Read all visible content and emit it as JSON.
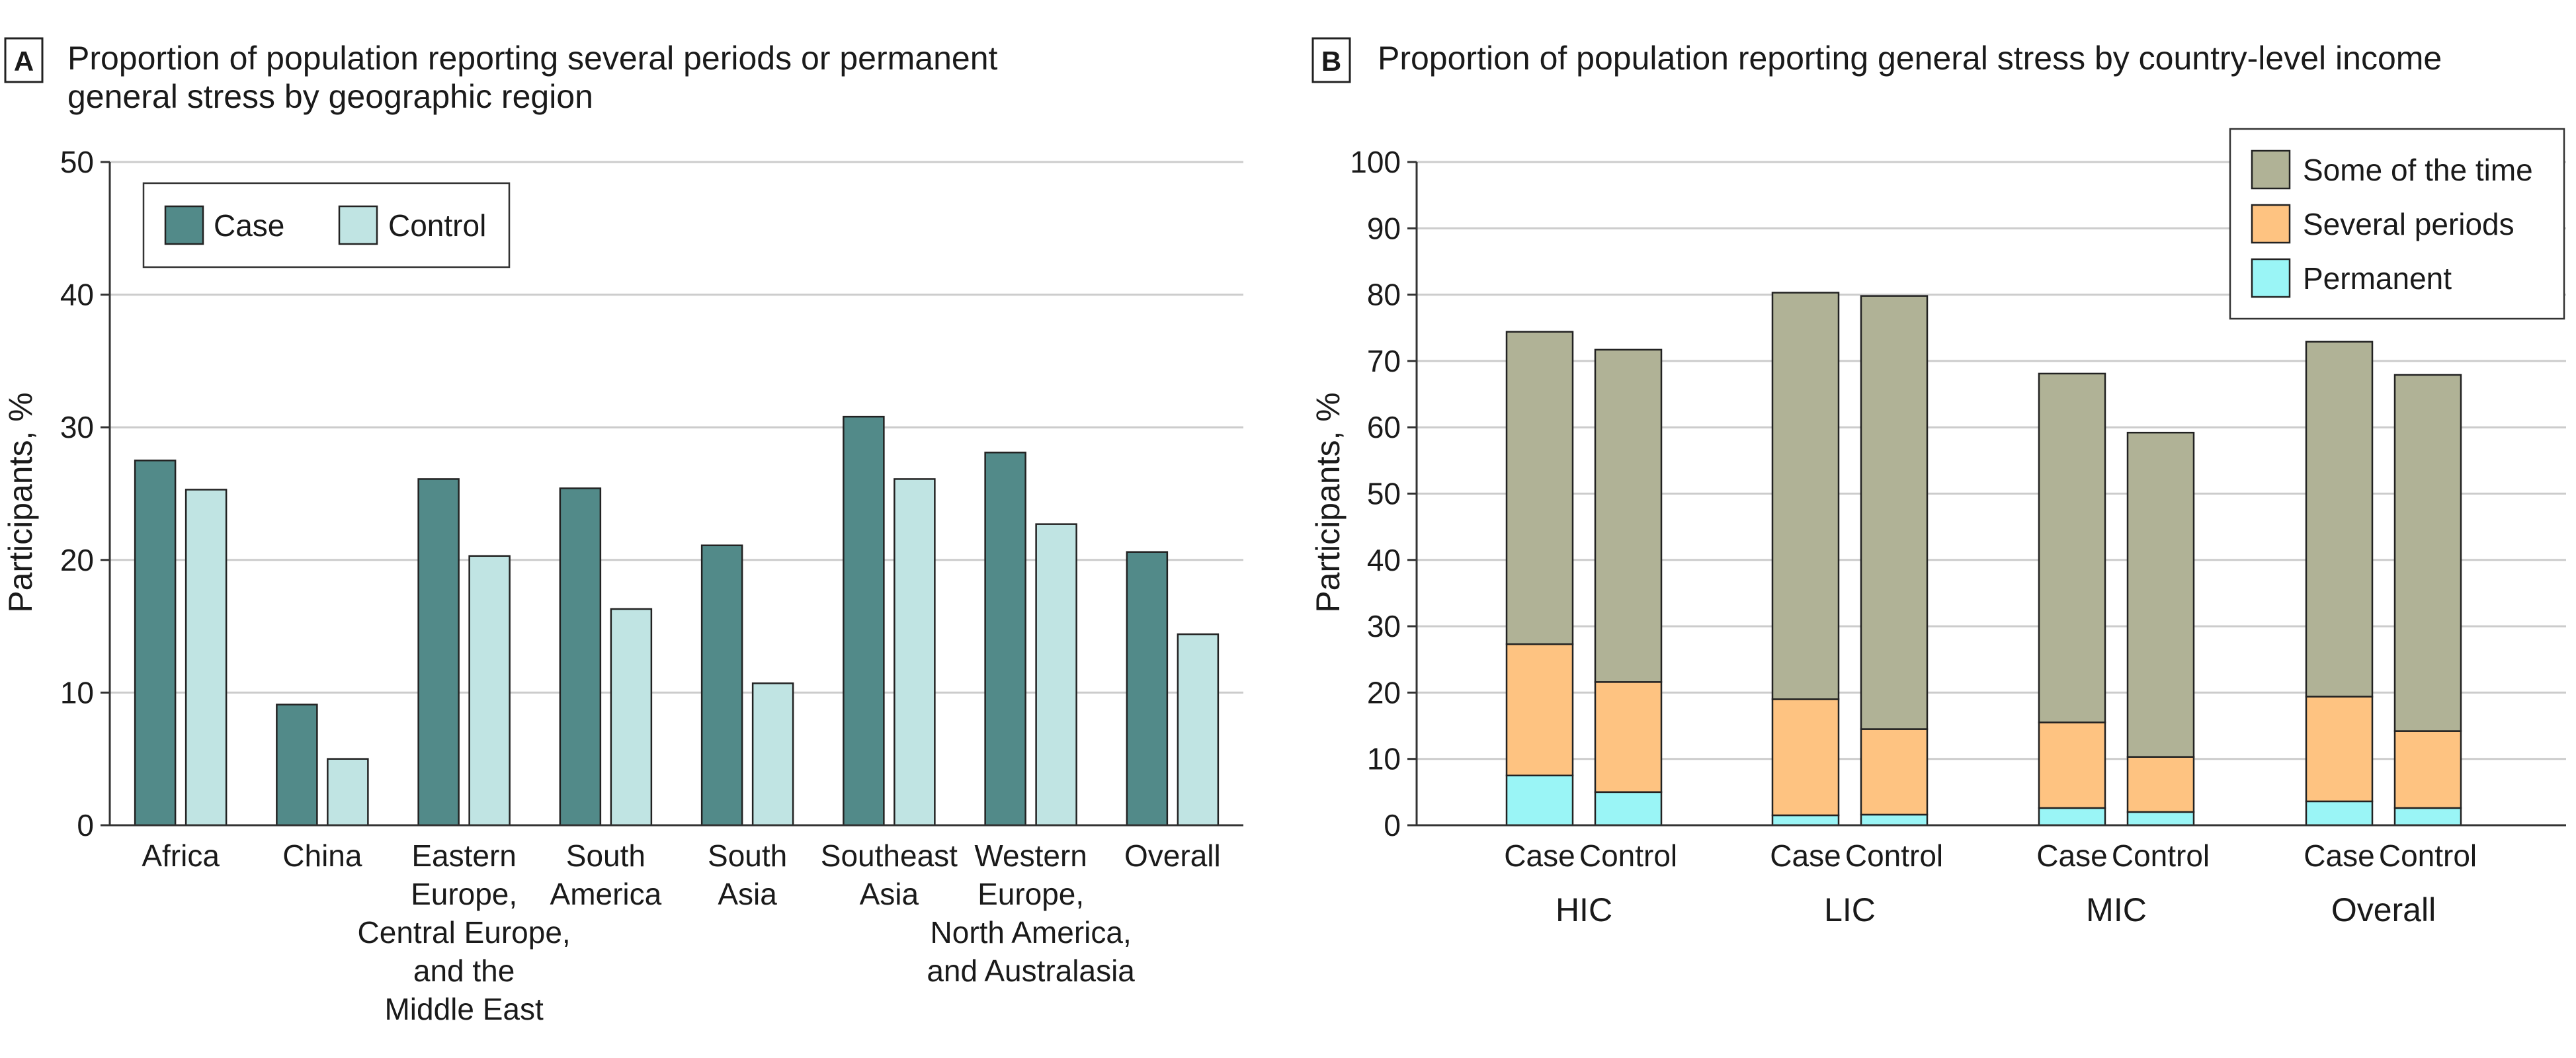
{
  "chart_data": [
    {
      "panel": "A",
      "type": "bar",
      "title_lines": [
        "Proportion of population reporting several periods or permanent",
        "general stress by geographic region"
      ],
      "ylabel": "Participants, %",
      "ylim": [
        0,
        50
      ],
      "yticks": [
        0,
        10,
        20,
        30,
        40,
        50
      ],
      "grid": true,
      "legend_position": "top-left",
      "categories": [
        [
          "Africa"
        ],
        [
          "China"
        ],
        [
          "Eastern",
          "Europe,",
          "Central Europe,",
          "and the",
          "Middle East"
        ],
        [
          "South",
          "America"
        ],
        [
          "South",
          "Asia"
        ],
        [
          "Southeast",
          "Asia"
        ],
        [
          "Western",
          "Europe,",
          "North America,",
          "and Australasia"
        ],
        [
          "Overall"
        ]
      ],
      "series": [
        {
          "name": "Case",
          "color": "#528a89",
          "values": [
            27.5,
            9.1,
            26.1,
            25.4,
            21.1,
            30.8,
            28.1,
            20.6
          ]
        },
        {
          "name": "Control",
          "color": "#c0e4e3",
          "values": [
            25.3,
            5.0,
            20.3,
            16.3,
            10.7,
            26.1,
            22.7,
            14.4
          ]
        }
      ]
    },
    {
      "panel": "B",
      "type": "bar",
      "stacked": true,
      "title_lines": [
        "Proportion of population reporting general stress by country-level income"
      ],
      "ylabel": "Participants, %",
      "ylim": [
        0,
        100
      ],
      "yticks": [
        0,
        10,
        20,
        30,
        40,
        50,
        60,
        70,
        80,
        90,
        100
      ],
      "grid": true,
      "legend_position": "top-right",
      "groups": [
        "HIC",
        "LIC",
        "MIC",
        "Overall"
      ],
      "sub_categories": [
        "Case",
        "Control"
      ],
      "series": [
        {
          "name": "Permanent",
          "color": "#9af5f6",
          "values": [
            [
              7.5,
              5.0
            ],
            [
              1.5,
              1.6
            ],
            [
              2.6,
              2.0
            ],
            [
              3.6,
              2.6
            ]
          ]
        },
        {
          "name": "Several periods",
          "color": "#fec381",
          "values": [
            [
              19.8,
              16.6
            ],
            [
              17.5,
              12.9
            ],
            [
              12.9,
              8.3
            ],
            [
              15.8,
              11.6
            ]
          ]
        },
        {
          "name": "Some of the time",
          "color": "#b0b296",
          "values": [
            [
              47.1,
              50.1
            ],
            [
              61.3,
              65.3
            ],
            [
              52.6,
              48.9
            ],
            [
              53.5,
              53.7
            ]
          ]
        }
      ],
      "legend_order": [
        "Some of the time",
        "Several periods",
        "Permanent"
      ]
    }
  ]
}
